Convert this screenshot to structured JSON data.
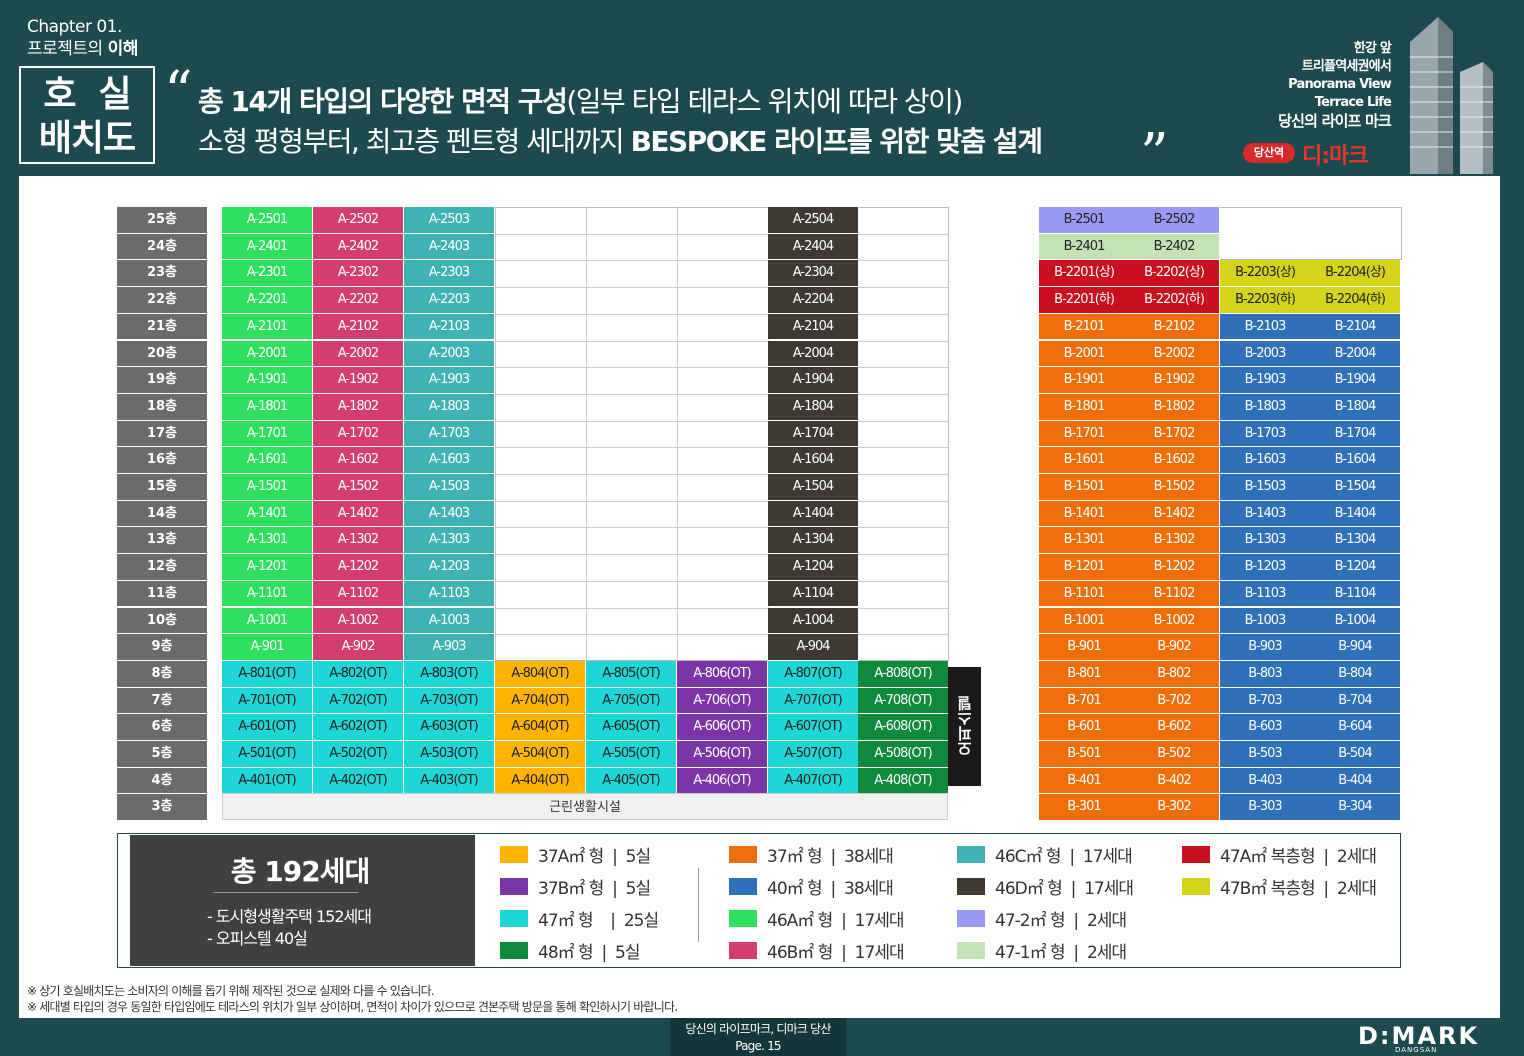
{
  "header": {
    "chapter": "Chapter 01.",
    "chapter_sub_1": "프로젝트의 ",
    "chapter_sub_2": "이해",
    "box_line1": "호  실",
    "box_line2": "배치도",
    "headline1_bold": "총 14개 타입의 다양한 면적 구성",
    "headline1_rest": "(일부 타입 테라스 위치에 따라 상이)",
    "headline2_rest": "소형 평형부터, 최고층 펜트형 세대까지 ",
    "headline2_bold": "BESPOKE 라이프를 위한 맞춤 설계",
    "right_lines": [
      "한강 앞",
      "트리플역세권에서",
      "Panorama View",
      "Terrace Life",
      "당신의 라이프 마크"
    ],
    "badge": "당산역",
    "brand": "디:마크"
  },
  "floors": [
    "25층",
    "24층",
    "23층",
    "22층",
    "21층",
    "20층",
    "19층",
    "18층",
    "17층",
    "16층",
    "15층",
    "14층",
    "13층",
    "12층",
    "11층",
    "10층",
    "9층",
    "8층",
    "7층",
    "6층",
    "5층",
    "4층",
    "3층"
  ],
  "colors": {
    "A1": "#2ee05e",
    "A2": "#d33e6f",
    "A3": "#3fb3b3",
    "A4": "#3c3a33",
    "OT1": "#1fd6d6",
    "OT4": "#ffb400",
    "OT6": "#7a35a8",
    "OT8": "#0e8a3a",
    "B_lav": "#9a9af5",
    "B_sage": "#c4e3b4",
    "B_red": "#c8101e",
    "B_yellow": "#d4d41a",
    "B_orange": "#f06e0a",
    "B_blue": "#2f70b8"
  },
  "a_tower": {
    "col1": [
      "A-2501",
      "A-2401",
      "A-2301",
      "A-2201",
      "A-2101",
      "A-2001",
      "A-1901",
      "A-1801",
      "A-1701",
      "A-1601",
      "A-1501",
      "A-1401",
      "A-1301",
      "A-1201",
      "A-1101",
      "A-1001",
      "A-901"
    ],
    "col2": [
      "A-2502",
      "A-2402",
      "A-2302",
      "A-2202",
      "A-2102",
      "A-2002",
      "A-1902",
      "A-1802",
      "A-1702",
      "A-1602",
      "A-1502",
      "A-1402",
      "A-1302",
      "A-1202",
      "A-1102",
      "A-1002",
      "A-902"
    ],
    "col3": [
      "A-2503",
      "A-2403",
      "A-2303",
      "A-2203",
      "A-2103",
      "A-2003",
      "A-1903",
      "A-1803",
      "A-1703",
      "A-1603",
      "A-1503",
      "A-1403",
      "A-1303",
      "A-1203",
      "A-1103",
      "A-1003",
      "A-903"
    ],
    "col7": [
      "A-2504",
      "A-2404",
      "A-2304",
      "A-2204",
      "A-2104",
      "A-2004",
      "A-1904",
      "A-1804",
      "A-1704",
      "A-1604",
      "A-1504",
      "A-1404",
      "A-1304",
      "A-1204",
      "A-1104",
      "A-1004",
      "A-904"
    ],
    "ot_rows": [
      [
        "A-801(OT)",
        "A-802(OT)",
        "A-803(OT)",
        "A-804(OT)",
        "A-805(OT)",
        "A-806(OT)",
        "A-807(OT)",
        "A-808(OT)"
      ],
      [
        "A-701(OT)",
        "A-702(OT)",
        "A-703(OT)",
        "A-704(OT)",
        "A-705(OT)",
        "A-706(OT)",
        "A-707(OT)",
        "A-708(OT)"
      ],
      [
        "A-601(OT)",
        "A-602(OT)",
        "A-603(OT)",
        "A-604(OT)",
        "A-605(OT)",
        "A-606(OT)",
        "A-607(OT)",
        "A-608(OT)"
      ],
      [
        "A-501(OT)",
        "A-502(OT)",
        "A-503(OT)",
        "A-504(OT)",
        "A-505(OT)",
        "A-506(OT)",
        "A-507(OT)",
        "A-508(OT)"
      ],
      [
        "A-401(OT)",
        "A-402(OT)",
        "A-403(OT)",
        "A-404(OT)",
        "A-405(OT)",
        "A-406(OT)",
        "A-407(OT)",
        "A-408(OT)"
      ]
    ],
    "officetel_label": "오피스텔",
    "commercial_label": "근린생활시설"
  },
  "b_tower": {
    "rows": [
      [
        "B-2501",
        "B-2502",
        "",
        ""
      ],
      [
        "B-2401",
        "B-2402",
        "",
        ""
      ],
      [
        "B-2201(상)",
        "B-2202(상)",
        "B-2203(상)",
        "B-2204(상)"
      ],
      [
        "B-2201(하)",
        "B-2202(하)",
        "B-2203(하)",
        "B-2204(하)"
      ],
      [
        "B-2101",
        "B-2102",
        "B-2103",
        "B-2104"
      ],
      [
        "B-2001",
        "B-2002",
        "B-2003",
        "B-2004"
      ],
      [
        "B-1901",
        "B-1902",
        "B-1903",
        "B-1904"
      ],
      [
        "B-1801",
        "B-1802",
        "B-1803",
        "B-1804"
      ],
      [
        "B-1701",
        "B-1702",
        "B-1703",
        "B-1704"
      ],
      [
        "B-1601",
        "B-1602",
        "B-1603",
        "B-1604"
      ],
      [
        "B-1501",
        "B-1502",
        "B-1503",
        "B-1504"
      ],
      [
        "B-1401",
        "B-1402",
        "B-1403",
        "B-1404"
      ],
      [
        "B-1301",
        "B-1302",
        "B-1303",
        "B-1304"
      ],
      [
        "B-1201",
        "B-1202",
        "B-1203",
        "B-1204"
      ],
      [
        "B-1101",
        "B-1102",
        "B-1103",
        "B-1104"
      ],
      [
        "B-1001",
        "B-1002",
        "B-1003",
        "B-1004"
      ],
      [
        "B-901",
        "B-902",
        "B-903",
        "B-904"
      ],
      [
        "B-801",
        "B-802",
        "B-803",
        "B-804"
      ],
      [
        "B-701",
        "B-702",
        "B-703",
        "B-704"
      ],
      [
        "B-601",
        "B-602",
        "B-603",
        "B-604"
      ],
      [
        "B-501",
        "B-502",
        "B-503",
        "B-504"
      ],
      [
        "B-401",
        "B-402",
        "B-403",
        "B-404"
      ],
      [
        "B-301",
        "B-302",
        "B-303",
        "B-304"
      ]
    ]
  },
  "legend": {
    "total_title": "총 192세대",
    "total_sub1": "- 도시형생활주택 152세대",
    "total_sub2": "- 오피스텔 40실",
    "items": [
      {
        "label": "37A㎡ 형  |  5실",
        "color": "#ffb400"
      },
      {
        "label": "37B㎡ 형  |  5실",
        "color": "#7a35a8"
      },
      {
        "label": "47㎡ 형    |  25실",
        "color": "#1fd6d6"
      },
      {
        "label": "48㎡ 형  |  5실",
        "color": "#0e8a3a"
      },
      {
        "label": "37㎡ 형  |  38세대",
        "color": "#f06e0a"
      },
      {
        "label": "40㎡ 형  |  38세대",
        "color": "#2f70b8"
      },
      {
        "label": "46A㎡ 형  |  17세대",
        "color": "#2ee05e"
      },
      {
        "label": "46B㎡ 형  |  17세대",
        "color": "#d33e6f"
      },
      {
        "label": "46C㎡ 형  |  17세대",
        "color": "#3fb3b3"
      },
      {
        "label": "46D㎡ 형  |  17세대",
        "color": "#3c3a33"
      },
      {
        "label": "47-2㎡ 형  |  2세대",
        "color": "#9a9af5"
      },
      {
        "label": "47-1㎡ 형  |  2세대",
        "color": "#c4e3b4"
      },
      {
        "label": "47A㎡ 복층형  |  2세대",
        "color": "#c8101e"
      },
      {
        "label": "47B㎡ 복층형  |  2세대",
        "color": "#d4d41a"
      }
    ]
  },
  "notes": [
    "※ 상기 호실배치도는 소비자의 이해를 돕기 위해 제작된 것으로 실제와 다를 수 있습니다.",
    "※ 세대별 타입의 경우 동일한 타입임에도 테라스의 위치가 일부 상이하며, 면적이 차이가 있으므로 견본주택 방문을 통해 확인하시기 바랍니다."
  ],
  "footer": {
    "line1": "당신의 라이프마크, 디마크 당산",
    "line2": "Page. 15",
    "logo": "D:MARK",
    "logo_sub": "DANGSAN"
  }
}
